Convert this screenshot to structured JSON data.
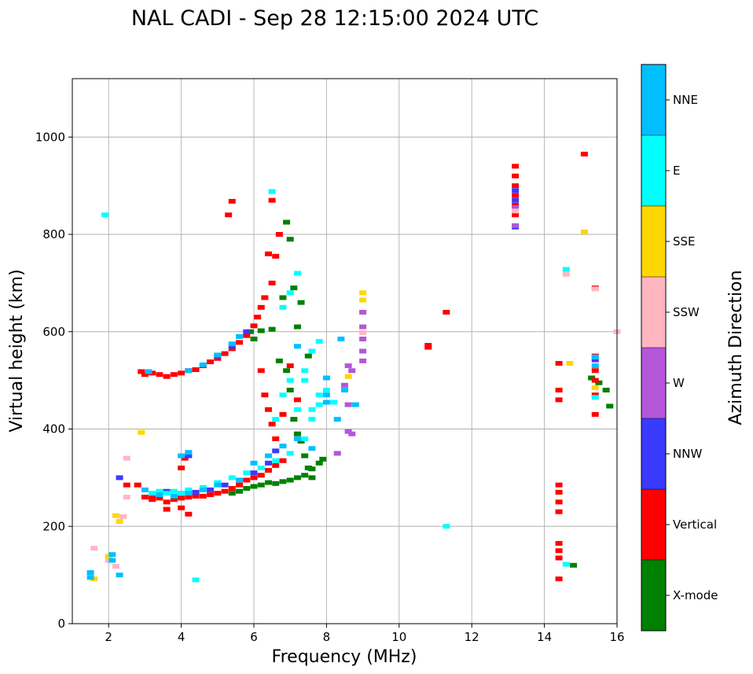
{
  "chart_data": {
    "type": "scatter",
    "title": "NAL CADI - Sep 28 12:15:00 2024 UTC",
    "xlabel": "Frequency (MHz)",
    "ylabel": "Virtual height (km)",
    "xlim": [
      1,
      16
    ],
    "ylim": [
      0,
      1120
    ],
    "xticks": [
      2,
      4,
      6,
      8,
      10,
      12,
      14,
      16
    ],
    "xtick_labels": [
      "2",
      "4",
      "6",
      "8",
      "10",
      "12",
      "14",
      "16"
    ],
    "yticks": [
      0,
      200,
      400,
      600,
      800,
      1000
    ],
    "ytick_labels": [
      "0",
      "200",
      "400",
      "600",
      "800",
      "1000"
    ],
    "grid": true,
    "colorbar": {
      "label": "Azimuth Direction",
      "categories": [
        {
          "name": "X-mode",
          "color": "#008000"
        },
        {
          "name": "Vertical",
          "color": "#ff0000"
        },
        {
          "name": "NNW",
          "color": "#3a3aff"
        },
        {
          "name": "W",
          "color": "#b456d8"
        },
        {
          "name": "SSW",
          "color": "#ffb6c1"
        },
        {
          "name": "SSE",
          "color": "#ffd700"
        },
        {
          "name": "E",
          "color": "#00ffff"
        },
        {
          "name": "NNE",
          "color": "#00bfff"
        }
      ]
    },
    "series": [
      {
        "name": "X-mode",
        "points": [
          [
            5.4,
            268
          ],
          [
            5.6,
            272
          ],
          [
            5.8,
            278
          ],
          [
            6.0,
            282
          ],
          [
            6.2,
            285
          ],
          [
            6.4,
            290
          ],
          [
            6.6,
            288
          ],
          [
            6.8,
            292
          ],
          [
            7.0,
            295
          ],
          [
            7.2,
            300
          ],
          [
            7.4,
            305
          ],
          [
            7.6,
            318
          ],
          [
            7.8,
            330
          ],
          [
            7.9,
            338
          ],
          [
            6.0,
            585
          ],
          [
            6.2,
            602
          ],
          [
            6.5,
            605
          ],
          [
            6.7,
            540
          ],
          [
            6.9,
            520
          ],
          [
            7.0,
            480
          ],
          [
            7.1,
            420
          ],
          [
            7.2,
            390
          ],
          [
            7.3,
            375
          ],
          [
            7.4,
            345
          ],
          [
            7.5,
            320
          ],
          [
            7.6,
            300
          ],
          [
            6.8,
            670
          ],
          [
            7.0,
            790
          ],
          [
            6.9,
            825
          ],
          [
            7.1,
            690
          ],
          [
            7.3,
            660
          ],
          [
            7.5,
            550
          ],
          [
            15.5,
            495
          ],
          [
            15.7,
            480
          ],
          [
            15.8,
            447
          ],
          [
            14.8,
            120
          ],
          [
            5.9,
            600
          ],
          [
            7.2,
            610
          ],
          [
            15.3,
            505
          ]
        ]
      },
      {
        "name": "Vertical",
        "points": [
          [
            3.0,
            260
          ],
          [
            3.2,
            255
          ],
          [
            3.4,
            258
          ],
          [
            3.6,
            250
          ],
          [
            3.8,
            255
          ],
          [
            4.0,
            258
          ],
          [
            4.2,
            260
          ],
          [
            4.4,
            262
          ],
          [
            4.6,
            262
          ],
          [
            4.8,
            265
          ],
          [
            5.0,
            268
          ],
          [
            5.2,
            272
          ],
          [
            5.4,
            278
          ],
          [
            5.6,
            285
          ],
          [
            5.8,
            295
          ],
          [
            6.0,
            300
          ],
          [
            6.2,
            305
          ],
          [
            6.4,
            315
          ],
          [
            6.6,
            325
          ],
          [
            6.8,
            335
          ],
          [
            3.0,
            512
          ],
          [
            3.2,
            515
          ],
          [
            3.4,
            512
          ],
          [
            3.6,
            508
          ],
          [
            3.8,
            512
          ],
          [
            4.0,
            515
          ],
          [
            4.2,
            520
          ],
          [
            4.4,
            522
          ],
          [
            4.6,
            530
          ],
          [
            4.8,
            538
          ],
          [
            5.0,
            545
          ],
          [
            5.2,
            555
          ],
          [
            5.4,
            565
          ],
          [
            5.6,
            578
          ],
          [
            5.8,
            592
          ],
          [
            6.0,
            612
          ],
          [
            6.1,
            630
          ],
          [
            6.2,
            650
          ],
          [
            6.3,
            670
          ],
          [
            6.5,
            700
          ],
          [
            6.6,
            755
          ],
          [
            6.7,
            800
          ],
          [
            6.4,
            760
          ],
          [
            6.5,
            870
          ],
          [
            5.4,
            868
          ],
          [
            5.3,
            840
          ],
          [
            6.2,
            520
          ],
          [
            6.3,
            470
          ],
          [
            6.4,
            440
          ],
          [
            6.5,
            410
          ],
          [
            6.6,
            380
          ],
          [
            6.8,
            430
          ],
          [
            7.0,
            530
          ],
          [
            7.2,
            460
          ],
          [
            13.2,
            940
          ],
          [
            13.2,
            920
          ],
          [
            13.2,
            900
          ],
          [
            13.2,
            880
          ],
          [
            13.2,
            860
          ],
          [
            13.2,
            840
          ],
          [
            14.4,
            480
          ],
          [
            14.4,
            460
          ],
          [
            14.4,
            535
          ],
          [
            14.4,
            285
          ],
          [
            14.4,
            270
          ],
          [
            14.4,
            250
          ],
          [
            14.4,
            230
          ],
          [
            14.4,
            165
          ],
          [
            14.4,
            150
          ],
          [
            14.4,
            135
          ],
          [
            14.4,
            92
          ],
          [
            15.1,
            965
          ],
          [
            15.4,
            690
          ],
          [
            15.4,
            550
          ],
          [
            15.4,
            520
          ],
          [
            15.4,
            500
          ],
          [
            15.4,
            470
          ],
          [
            15.4,
            430
          ],
          [
            11.3,
            640
          ],
          [
            10.8,
            572
          ],
          [
            10.8,
            568
          ],
          [
            4.2,
            225
          ],
          [
            4.0,
            238
          ],
          [
            3.6,
            235
          ],
          [
            3.2,
            262
          ],
          [
            2.8,
            285
          ],
          [
            2.9,
            518
          ],
          [
            4.1,
            340
          ],
          [
            4.0,
            320
          ],
          [
            2.5,
            285
          ]
        ]
      },
      {
        "name": "NNW",
        "points": [
          [
            3.6,
            272
          ],
          [
            4.0,
            268
          ],
          [
            4.4,
            270
          ],
          [
            4.8,
            275
          ],
          [
            5.2,
            285
          ],
          [
            5.6,
            295
          ],
          [
            6.0,
            310
          ],
          [
            6.4,
            330
          ],
          [
            5.0,
            550
          ],
          [
            5.4,
            570
          ],
          [
            5.8,
            600
          ],
          [
            13.2,
            890
          ],
          [
            13.2,
            870
          ],
          [
            13.2,
            815
          ],
          [
            15.4,
            542
          ],
          [
            4.2,
            345
          ],
          [
            6.6,
            355
          ],
          [
            2.3,
            300
          ]
        ]
      },
      {
        "name": "W",
        "points": [
          [
            8.5,
            490
          ],
          [
            8.6,
            530
          ],
          [
            8.7,
            520
          ],
          [
            8.6,
            395
          ],
          [
            8.7,
            390
          ],
          [
            8.6,
            450
          ],
          [
            9.0,
            640
          ],
          [
            9.0,
            610
          ],
          [
            9.0,
            585
          ],
          [
            9.0,
            560
          ],
          [
            9.0,
            540
          ],
          [
            8.3,
            350
          ],
          [
            13.2,
            855
          ],
          [
            13.2,
            818
          ]
        ]
      },
      {
        "name": "SSW",
        "points": [
          [
            1.6,
            155
          ],
          [
            2.0,
            130
          ],
          [
            2.2,
            118
          ],
          [
            2.4,
            220
          ],
          [
            2.5,
            260
          ],
          [
            9.0,
            598
          ],
          [
            14.6,
            718
          ],
          [
            15.4,
            688
          ],
          [
            16.0,
            600
          ],
          [
            15.4,
            548
          ],
          [
            13.2,
            848
          ],
          [
            2.5,
            340
          ]
        ]
      },
      {
        "name": "SSE",
        "points": [
          [
            2.2,
            222
          ],
          [
            2.3,
            210
          ],
          [
            2.0,
            138
          ],
          [
            1.6,
            92
          ],
          [
            2.9,
            393
          ],
          [
            9.0,
            680
          ],
          [
            9.0,
            665
          ],
          [
            8.6,
            508
          ],
          [
            14.7,
            535
          ],
          [
            15.1,
            805
          ],
          [
            15.4,
            485
          ]
        ]
      },
      {
        "name": "E",
        "points": [
          [
            3.2,
            268
          ],
          [
            3.4,
            272
          ],
          [
            3.6,
            268
          ],
          [
            3.8,
            272
          ],
          [
            4.0,
            268
          ],
          [
            4.2,
            275
          ],
          [
            4.6,
            280
          ],
          [
            5.0,
            290
          ],
          [
            5.4,
            300
          ],
          [
            5.8,
            310
          ],
          [
            6.2,
            320
          ],
          [
            6.6,
            335
          ],
          [
            7.0,
            350
          ],
          [
            7.4,
            380
          ],
          [
            7.6,
            420
          ],
          [
            7.8,
            450
          ],
          [
            8.0,
            480
          ],
          [
            8.2,
            455
          ],
          [
            7.8,
            470
          ],
          [
            7.6,
            440
          ],
          [
            7.2,
            440
          ],
          [
            6.6,
            420
          ],
          [
            6.8,
            470
          ],
          [
            7.0,
            500
          ],
          [
            7.4,
            520
          ],
          [
            7.6,
            560
          ],
          [
            7.8,
            580
          ],
          [
            6.8,
            650
          ],
          [
            7.0,
            680
          ],
          [
            7.2,
            720
          ],
          [
            6.5,
            888
          ],
          [
            1.9,
            840
          ],
          [
            11.3,
            200
          ],
          [
            14.6,
            728
          ],
          [
            4.4,
            90
          ],
          [
            14.6,
            122
          ],
          [
            15.4,
            465
          ],
          [
            7.4,
            500
          ]
        ]
      },
      {
        "name": "NNE",
        "points": [
          [
            3.0,
            275
          ],
          [
            3.4,
            265
          ],
          [
            3.8,
            262
          ],
          [
            4.2,
            268
          ],
          [
            4.6,
            275
          ],
          [
            5.0,
            285
          ],
          [
            5.6,
            295
          ],
          [
            6.0,
            330
          ],
          [
            6.4,
            345
          ],
          [
            6.8,
            365
          ],
          [
            7.2,
            380
          ],
          [
            7.6,
            360
          ],
          [
            8.0,
            455
          ],
          [
            8.3,
            420
          ],
          [
            1.5,
            105
          ],
          [
            1.5,
            95
          ],
          [
            2.3,
            100
          ],
          [
            2.1,
            130
          ],
          [
            2.1,
            142
          ],
          [
            3.1,
            518
          ],
          [
            4.0,
            345
          ],
          [
            4.2,
            352
          ],
          [
            4.2,
            520
          ],
          [
            4.6,
            532
          ],
          [
            5.0,
            552
          ],
          [
            5.4,
            575
          ],
          [
            5.6,
            590
          ],
          [
            8.4,
            585
          ],
          [
            8.5,
            480
          ],
          [
            8.8,
            450
          ],
          [
            15.4,
            548
          ],
          [
            15.4,
            530
          ],
          [
            7.2,
            570
          ],
          [
            8.0,
            505
          ],
          [
            8.0,
            470
          ]
        ]
      }
    ]
  }
}
